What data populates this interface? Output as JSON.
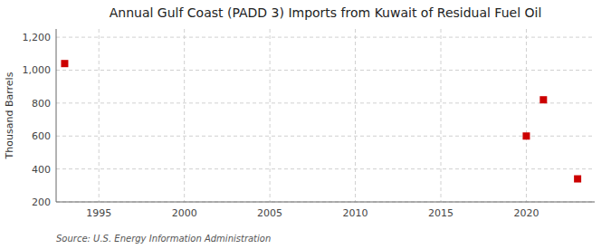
{
  "chart_data": {
    "type": "scatter",
    "title": "Annual Gulf Coast (PADD 3) Imports from Kuwait of Residual Fuel Oil",
    "ylabel": "Thousand Barrels",
    "source": "Source: U.S. Energy Information Administration",
    "x": [
      1993,
      2020,
      2021,
      2023
    ],
    "values": [
      1040,
      600,
      820,
      340
    ],
    "color": "#cc0000",
    "marker": "square",
    "xlim": [
      1992.5,
      2024
    ],
    "ylim": [
      200,
      1250
    ],
    "xticks": [
      1995,
      2000,
      2005,
      2010,
      2015,
      2020
    ],
    "yticks": [
      200,
      400,
      600,
      800,
      {
        "value": 1000,
        "label": "1,000"
      },
      {
        "value": 1200,
        "label": "1,200"
      }
    ],
    "grid": true
  }
}
